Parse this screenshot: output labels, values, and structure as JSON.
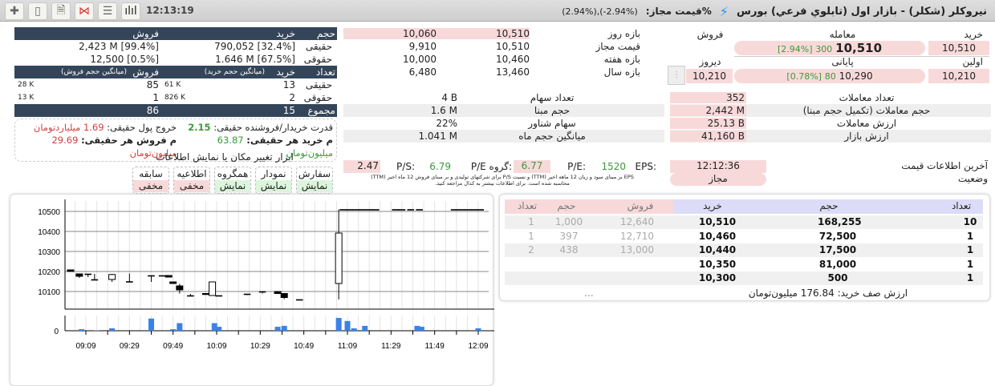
{
  "toolbar": {
    "icons": [
      "plus-icon",
      "calculator-icon",
      "note-icon",
      "network-chart-icon",
      "list-icon",
      "bar-chart-icon"
    ],
    "time": "12:13:19"
  },
  "header": {
    "title": "نیروکلر (شکلر) - بازار اول (تابلوي فرعي) بورس",
    "price_label": "%قیمت مجاز:",
    "price_range": "(2.94%),(-2.94%)"
  },
  "client_table": {
    "h_volume": "حجم",
    "h_buy": "خرید",
    "h_sell": "فروش",
    "rows": [
      {
        "label": "حقیقی",
        "buy": "790,052 [32.4%]",
        "sell": "2,423 M [99.4%]"
      },
      {
        "label": "حقوقی",
        "buy": "1.646 M [67.5%]",
        "sell": "12,500 [0.5%]"
      }
    ],
    "h_count": "تعداد",
    "h_avg_buy": "(میانگین حجم خرید)",
    "h_avg_sell": "(میانگین حجم فروش)",
    "count_rows": [
      {
        "label": "حقیقی",
        "buy": "13",
        "avg_buy": "61 K",
        "sell": "85",
        "avg_sell": "28 K"
      },
      {
        "label": "حقوقی",
        "buy": "2",
        "avg_buy": "826 K",
        "sell": "1",
        "avg_sell": "13 K"
      }
    ],
    "total_label": "مجموع",
    "total_buy": "15",
    "total_sell": "86"
  },
  "power": {
    "ratio_label": "قدرت خریدار/فروشنده حقیقی:",
    "ratio_value": "2.15",
    "outflow_label": "خروج پول حقیقی:",
    "outflow_value": "1.69 میلیاردتومان",
    "avg_buy_label": "م خرید هر حقیقی:",
    "avg_buy_value": "63.87 میلیون‌تومان",
    "avg_sell_label": "م فروش هر حقیقی:",
    "avg_sell_value": "29.69 میلیون‌تومان"
  },
  "ranges": [
    {
      "label": "بازه روز",
      "low": "10,060",
      "high": "10,510"
    },
    {
      "label": "قیمت مجاز",
      "low": "9,910",
      "high": "10,510"
    },
    {
      "label": "بازه هفته",
      "low": "10,000",
      "high": "10,460"
    },
    {
      "label": "بازه سال",
      "low": "6,480",
      "high": "13,460"
    }
  ],
  "share_info": [
    {
      "label": "تعداد سهام",
      "value": "4 B"
    },
    {
      "label": "حجم مبنا",
      "value": "1.6 M"
    },
    {
      "label": "سهام شناور",
      "value": "22%"
    },
    {
      "label": "میانگین حجم ماه",
      "value": "1.041 M"
    }
  ],
  "prices": {
    "h_buy": "خرید",
    "h_trade": "معامله",
    "h_sell": "فروش",
    "buy": "10,510",
    "trade": "10,510",
    "trade_change": "300",
    "trade_pct": "[2.94%]",
    "h_first": "اولین",
    "h_close": "پایانی",
    "h_yesterday": "دیروز",
    "first": "10,210",
    "close": "10,290",
    "close_change": "80",
    "close_pct": "[0.78%]",
    "yesterday": "10,210"
  },
  "trade_stats": [
    {
      "label": "تعداد معاملات",
      "value": "352"
    },
    {
      "label": "حجم معاملات (تکمیل حجم مبنا)",
      "value": "2,442 M"
    },
    {
      "label": "ارزش معاملات",
      "value": "25.13 B"
    },
    {
      "label": "ارزش بازار",
      "value": "41,160 B"
    }
  ],
  "status": {
    "last_label": "آخرین اطلاعات قیمت",
    "last_value": "12:12:36",
    "state_label": "وضعیت",
    "state_value": "مجاز"
  },
  "ratios": {
    "eps_label": "EPS:",
    "eps": "1520",
    "pe_label": "P/E:",
    "pe": "6.77",
    "group_pe_label": "P/E گروه:",
    "group_pe": "6.79",
    "ps_label": "P/S:",
    "ps": "2.47",
    "note1": "EPS بر مبنای سود و زیان 12 ماهه اخیر (TTM) و نسبت P/S برای شرکتهای تولیدی و بر مبنای فروش 12 ماه اخیر (TTM)",
    "note2": "محاسبه شده است. برای اطلاعات بیشتر به کدال مراجعه کنید."
  },
  "tools": {
    "title": "ابزار تغییر مکان یا نمایش اطلاعات",
    "buttons": [
      {
        "label": "سفارش",
        "state": "نمایش",
        "on": true
      },
      {
        "label": "نمودار",
        "state": "نمایش",
        "on": true
      },
      {
        "label": "همگروه",
        "state": "نمایش",
        "on": true
      },
      {
        "label": "اطلاعیه",
        "state": "مخفی",
        "on": false
      },
      {
        "label": "سابقه",
        "state": "مخفی",
        "on": false
      }
    ]
  },
  "orderbook": {
    "h_buy_count": "تعداد",
    "h_buy_volume": "حجم",
    "h_buy_price": "خرید",
    "h_sell_price": "فروش",
    "h_sell_volume": "حجم",
    "h_sell_count": "تعداد",
    "rows": [
      {
        "buy_count": "10",
        "buy_volume": "168,255",
        "buy_price": "10,510",
        "sell_price": "12,640",
        "sell_volume": "1,000",
        "sell_count": "1"
      },
      {
        "buy_count": "1",
        "buy_volume": "72,500",
        "buy_price": "10,460",
        "sell_price": "12,710",
        "sell_volume": "397",
        "sell_count": "1"
      },
      {
        "buy_count": "1",
        "buy_volume": "17,500",
        "buy_price": "10,440",
        "sell_price": "13,000",
        "sell_volume": "438",
        "sell_count": "2"
      },
      {
        "buy_count": "1",
        "buy_volume": "81,000",
        "buy_price": "10,350",
        "sell_price": "",
        "sell_volume": "",
        "sell_count": ""
      },
      {
        "buy_count": "1",
        "buy_volume": "500",
        "buy_price": "10,300",
        "sell_price": "",
        "sell_volume": "",
        "sell_count": ""
      }
    ],
    "buy_queue_value": "ارزش صف خرید: 176.84 میلیون‌تومان",
    "sell_queue_value": "..."
  },
  "colors": {
    "header_dark": "#34455a",
    "pink": "#f8d9d9",
    "buy_header": "#dcdcf8",
    "volume_bar": "#3b82e8",
    "positive": "#3a9a3a",
    "negative": "#d04040"
  },
  "chart_data": {
    "type": "candlestick",
    "x_ticks": [
      "09:09",
      "09:29",
      "09:49",
      "10:09",
      "10:29",
      "10:49",
      "11:09",
      "11:29",
      "11:49",
      "12:09"
    ],
    "y_ticks": [
      10100,
      10200,
      10300,
      10400,
      10500
    ],
    "ylim": [
      10000,
      10520
    ],
    "volume_ticks": [
      0
    ],
    "grid": true,
    "candles": [
      [
        "09:02",
        10208,
        10208,
        10200,
        10200
      ],
      [
        "09:06",
        10188,
        10190,
        10168,
        10176
      ],
      [
        "09:10",
        10188,
        10188,
        10172,
        10188
      ],
      [
        "09:13",
        10160,
        10188,
        10160,
        10160
      ],
      [
        "09:21",
        10160,
        10188,
        10148,
        10185
      ],
      [
        "09:29",
        10150,
        10190,
        10150,
        10150
      ],
      [
        "09:39",
        10180,
        10180,
        10148,
        10180
      ],
      [
        "09:44",
        10180,
        10180,
        10180,
        10180
      ],
      [
        "09:47",
        10180,
        10180,
        10172,
        10172
      ],
      [
        "09:49",
        10148,
        10148,
        10140,
        10140
      ],
      [
        "09:52",
        10128,
        10138,
        10090,
        10108
      ],
      [
        "09:57",
        10080,
        10088,
        10080,
        10080
      ],
      [
        "10:04",
        10090,
        10090,
        10085,
        10085
      ],
      [
        "10:07",
        10080,
        10148,
        10080,
        10148
      ],
      [
        "10:10",
        10080,
        10080,
        10080,
        10080
      ],
      [
        "10:23",
        10088,
        10088,
        10082,
        10088
      ],
      [
        "10:30",
        10100,
        10100,
        10090,
        10100
      ],
      [
        "10:37",
        10100,
        10100,
        10090,
        10090
      ],
      [
        "10:40",
        10090,
        10090,
        10062,
        10070
      ],
      [
        "10:47",
        10060,
        10060,
        10060,
        10060
      ],
      [
        "11:05",
        10140,
        10510,
        10060,
        10392
      ],
      [
        "11:07",
        10510,
        10510,
        10510,
        10510
      ],
      [
        "11:10",
        10510,
        10510,
        10510,
        10510
      ],
      [
        "11:13",
        10510,
        10510,
        10510,
        10510
      ],
      [
        "11:16",
        10510,
        10510,
        10510,
        10510
      ],
      [
        "11:19",
        10510,
        10510,
        10510,
        10510
      ],
      [
        "11:22",
        10510,
        10510,
        10510,
        10510
      ],
      [
        "11:31",
        10510,
        10510,
        10510,
        10510
      ],
      [
        "11:34",
        10510,
        10510,
        10510,
        10510
      ],
      [
        "11:38",
        10510,
        10510,
        10510,
        10510
      ],
      [
        "11:42",
        10510,
        10510,
        10510,
        10510
      ],
      [
        "11:58",
        10510,
        10510,
        10510,
        10510
      ],
      [
        "12:01",
        10510,
        10510,
        10510,
        10510
      ],
      [
        "12:04",
        10510,
        10510,
        10510,
        10510
      ],
      [
        "12:07",
        10510,
        10510,
        10510,
        10510
      ],
      [
        "12:10",
        10510,
        10510,
        10510,
        10510
      ]
    ],
    "volume": [
      [
        "09:07",
        5
      ],
      [
        "09:14",
        1
      ],
      [
        "09:21",
        8
      ],
      [
        "09:39",
        40
      ],
      [
        "09:49",
        5
      ],
      [
        "09:52",
        25
      ],
      [
        "10:08",
        25
      ],
      [
        "10:10",
        13
      ],
      [
        "10:37",
        13
      ],
      [
        "10:40",
        16
      ],
      [
        "11:05",
        42
      ],
      [
        "11:09",
        32
      ],
      [
        "11:12",
        8
      ],
      [
        "11:17",
        16
      ],
      [
        "11:41",
        16
      ],
      [
        "11:43",
        13
      ],
      [
        "12:09",
        8
      ]
    ]
  }
}
